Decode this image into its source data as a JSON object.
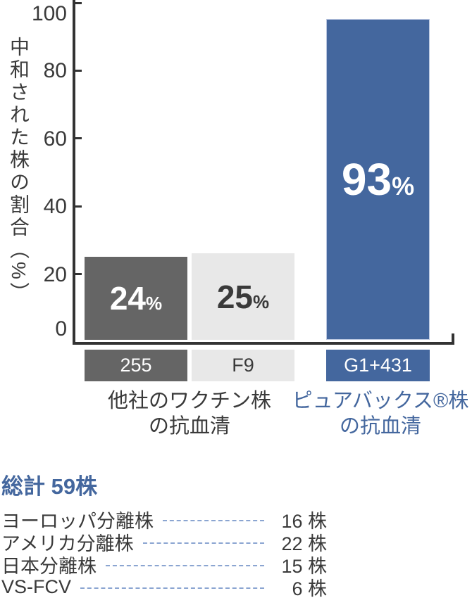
{
  "chart_data": {
    "type": "bar",
    "title": "",
    "ylabel": "中和された株の割合（%）",
    "xlabel": "",
    "ylim": [
      0,
      100
    ],
    "yticks": [
      0,
      20,
      40,
      60,
      80,
      100
    ],
    "grid": false,
    "legend": false,
    "axis_color": "#333333",
    "bars": [
      {
        "strain": "255",
        "value": 24,
        "unit": "%",
        "color": "#656565",
        "text_color": "#ffffff",
        "strain_text_color": "#ffffff"
      },
      {
        "strain": "F9",
        "value": 25,
        "unit": "%",
        "color": "#e8e8e8",
        "text_color": "#3a3a3a",
        "strain_text_color": "#3a3a3a"
      },
      {
        "strain": "G1+431",
        "value": 93,
        "unit": "%",
        "color": "#44679e",
        "text_color": "#ffffff",
        "strain_text_color": "#ffffff"
      }
    ],
    "groups": [
      {
        "line1": "他社のワクチン株",
        "line2": "の抗血清",
        "color": "#3a3a3a"
      },
      {
        "line1": "ピュアバックス®株",
        "line2": "の抗血清",
        "color": "#44679e"
      }
    ]
  },
  "summary": {
    "title": "総計 59株",
    "title_color": "#44679e",
    "leader_color": "#8ba5d1",
    "rows": [
      {
        "label": "ヨーロッパ分離株",
        "count": "16 株"
      },
      {
        "label": "アメリカ分離株",
        "count": "22 株"
      },
      {
        "label": "日本分離株",
        "count": "15 株"
      },
      {
        "label": "VS-FCV",
        "count": "6 株"
      }
    ]
  }
}
